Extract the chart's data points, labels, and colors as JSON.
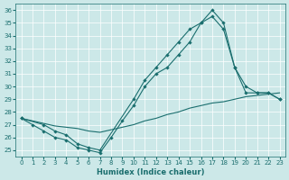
{
  "xlabel": "Humidex (Indice chaleur)",
  "xlim": [
    -0.5,
    23.5
  ],
  "ylim": [
    24.5,
    36.5
  ],
  "xticks": [
    0,
    1,
    2,
    3,
    4,
    5,
    6,
    7,
    8,
    9,
    10,
    11,
    12,
    13,
    14,
    15,
    16,
    17,
    18,
    19,
    20,
    21,
    22,
    23
  ],
  "yticks": [
    25,
    26,
    27,
    28,
    29,
    30,
    31,
    32,
    33,
    34,
    35,
    36
  ],
  "bg_color": "#cce8e8",
  "grid_color": "#b8d8d8",
  "line_color": "#1a6e6e",
  "line1_x": [
    0,
    1,
    2,
    3,
    4,
    5,
    6,
    7,
    8,
    9,
    10,
    11,
    12,
    13,
    14,
    15,
    16,
    17,
    18,
    19,
    20,
    21,
    22,
    23
  ],
  "line1_y": [
    27.5,
    27.0,
    26.5,
    26.0,
    25.8,
    25.2,
    25.0,
    24.8,
    26.0,
    27.3,
    28.5,
    30.0,
    31.0,
    31.5,
    32.5,
    33.5,
    35.0,
    36.0,
    35.0,
    31.5,
    30.0,
    29.5,
    29.5,
    29.0
  ],
  "line2_x": [
    0,
    2,
    3,
    4,
    5,
    6,
    7,
    10,
    11,
    12,
    13,
    14,
    15,
    16,
    17,
    18,
    19,
    20,
    21,
    22,
    23
  ],
  "line2_y": [
    27.5,
    27.0,
    26.5,
    26.2,
    25.5,
    25.2,
    25.0,
    29.0,
    30.5,
    31.5,
    32.5,
    33.5,
    34.5,
    35.0,
    35.5,
    34.5,
    31.5,
    29.5,
    29.5,
    29.5,
    29.0
  ],
  "line3_x": [
    0,
    1,
    2,
    3,
    4,
    5,
    6,
    7,
    8,
    9,
    10,
    11,
    12,
    13,
    14,
    15,
    16,
    17,
    18,
    19,
    20,
    21,
    22,
    23
  ],
  "line3_y": [
    27.5,
    27.3,
    27.1,
    26.9,
    26.8,
    26.7,
    26.5,
    26.4,
    26.6,
    26.8,
    27.0,
    27.3,
    27.5,
    27.8,
    28.0,
    28.3,
    28.5,
    28.7,
    28.8,
    29.0,
    29.2,
    29.3,
    29.4,
    29.5
  ]
}
